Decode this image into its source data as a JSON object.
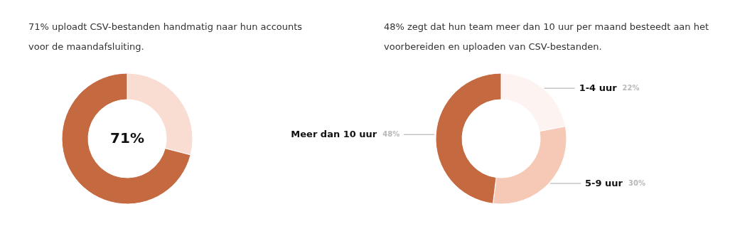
{
  "chart_data": [
    {
      "type": "donut",
      "title": "71% uploadt CSV-bestanden handmatig naar hun accounts voor de maandafsluiting.",
      "categories": [
        null,
        null
      ],
      "values": [
        29,
        71
      ],
      "colors": [
        "#f9ddd3",
        "#c56941"
      ],
      "annotations": [
        "71%"
      ]
    },
    {
      "type": "donut",
      "title": "48% zegt dat hun team meer dan 10 uur per maand besteedt aan het voorbereiden en uploaden van CSV-bestanden.",
      "categories": [
        "1-4 uur",
        "5-9 uur",
        "Meer dan 10 uur"
      ],
      "values": [
        22,
        30,
        48
      ],
      "colors": [
        "#fdf3f0",
        "#f6c8b6",
        "#c56941"
      ],
      "value_labels": [
        "22%",
        "30%",
        "48%"
      ]
    }
  ]
}
